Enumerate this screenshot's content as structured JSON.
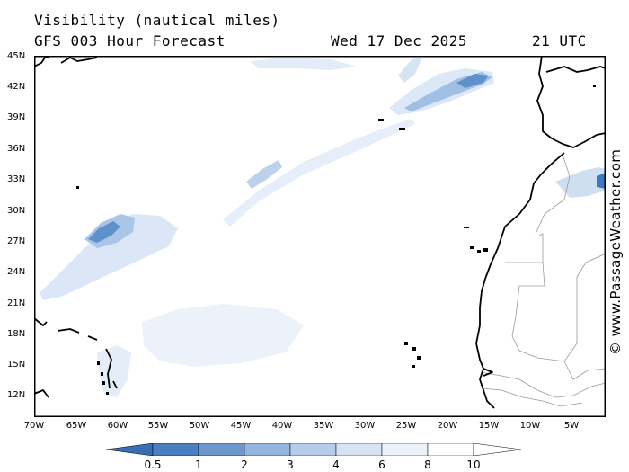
{
  "header": {
    "title": "Visibility (nautical miles)",
    "subtitle": "GFS 003 Hour Forecast",
    "date": "Wed 17 Dec 2025",
    "time": "21 UTC"
  },
  "credit": "© www.PassageWeather.com",
  "map": {
    "lat_labels": [
      "45N",
      "42N",
      "39N",
      "36N",
      "33N",
      "30N",
      "27N",
      "24N",
      "21N",
      "18N",
      "15N",
      "12N"
    ],
    "lon_labels": [
      "70W",
      "65W",
      "60W",
      "55W",
      "50W",
      "45W",
      "40W",
      "35W",
      "30W",
      "25W",
      "20W",
      "15W",
      "10W",
      "5W"
    ],
    "colors": {
      "land_outline": "#000000",
      "border": "#9a9a9a",
      "shade_light": "#cfdff2",
      "shade_mid": "#9bbce3",
      "shade_dark": "#4f86c6"
    }
  },
  "colorbar": {
    "ticks": [
      "0.5",
      "1",
      "2",
      "3",
      "4",
      "6",
      "8",
      "10"
    ],
    "colors": [
      "#3a6eb4",
      "#4a7fc1",
      "#6c98ce",
      "#93b4dc",
      "#b6cce8",
      "#d6e3f3",
      "#ecf2fa",
      "#ffffff"
    ]
  }
}
